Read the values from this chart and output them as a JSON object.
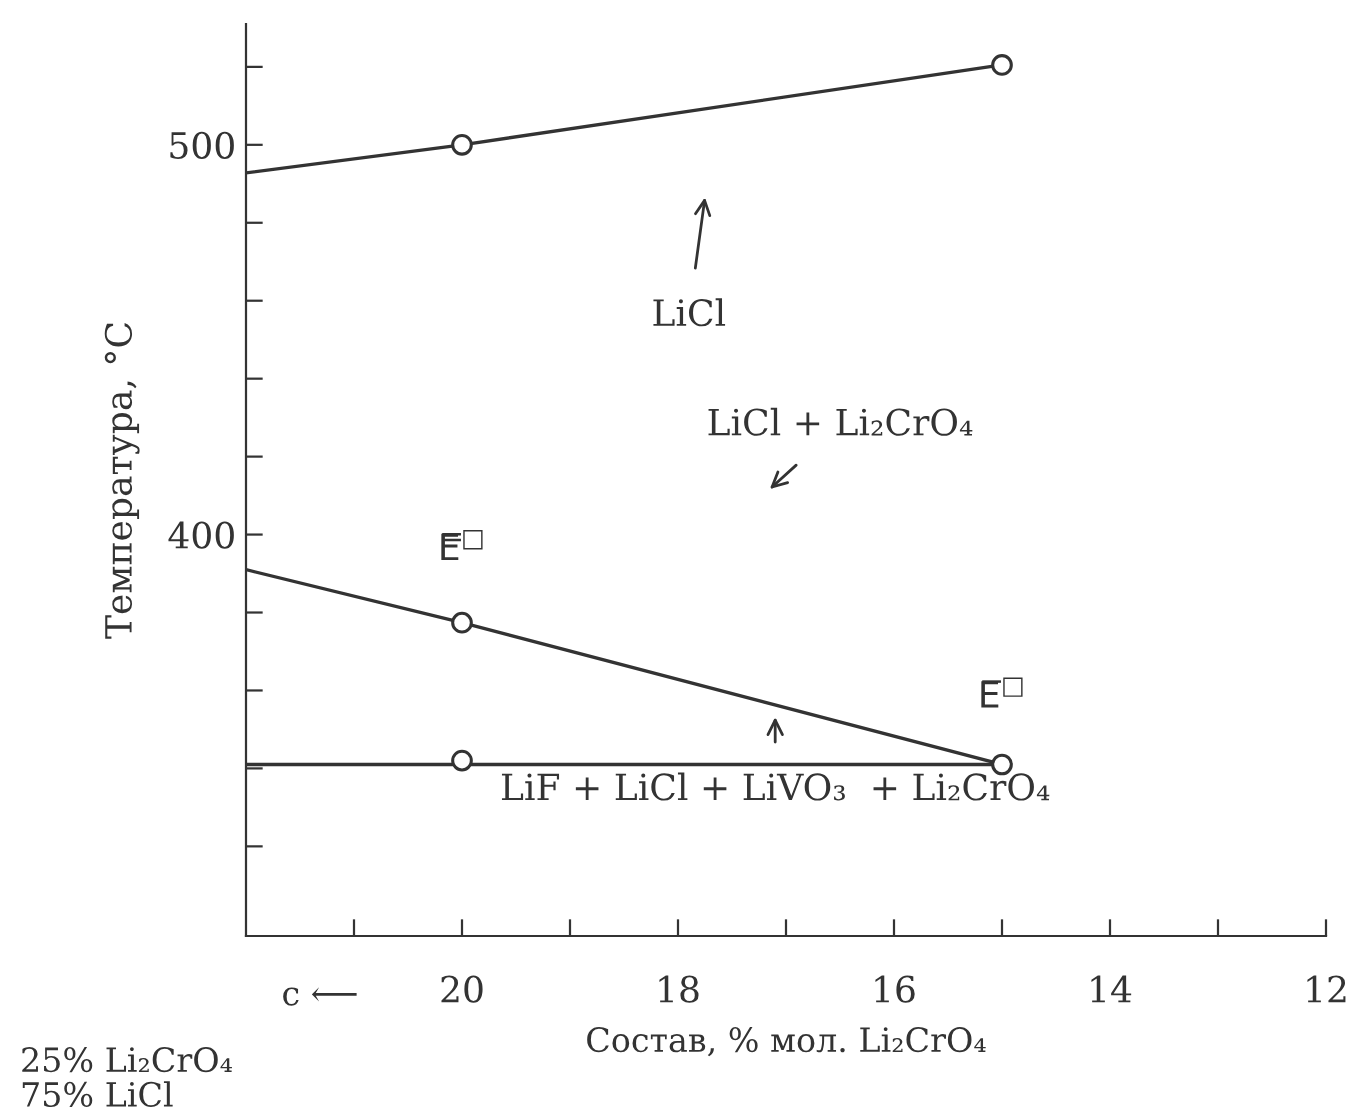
{
  "chart_data": {
    "type": "line",
    "xlabel": "Состав, % мол. Li₂CrO₄",
    "ylabel": "Температура, °C",
    "xlim": [
      22,
      12
    ],
    "ylim": [
      297,
      531
    ],
    "xticks": [
      {
        "value": 21,
        "label": null
      },
      20,
      {
        "value": 19,
        "label": null
      },
      18,
      {
        "value": 17,
        "label": null
      },
      16,
      {
        "value": 15,
        "label": null
      },
      14,
      {
        "value": 13,
        "label": null
      },
      12
    ],
    "yticks": [
      {
        "value": 320,
        "label": null
      },
      {
        "value": 340,
        "label": null
      },
      {
        "value": 360,
        "label": null
      },
      {
        "value": 380,
        "label": null
      },
      400,
      {
        "value": 420,
        "label": null
      },
      {
        "value": 440,
        "label": null
      },
      {
        "value": 460,
        "label": null
      },
      {
        "value": 480,
        "label": null
      },
      500,
      {
        "value": 520,
        "label": null
      }
    ],
    "grid": false,
    "line_style": "solid",
    "marker": "none",
    "series": [
      {
        "color": "#333333",
        "x": [
          22,
          20,
          15
        ],
        "values": [
          492.8,
          500,
          520.5
        ]
      },
      {
        "color": "#333333",
        "x": [
          22,
          20,
          15
        ],
        "values": [
          391,
          377.4,
          341
        ]
      },
      {
        "color": "#333333",
        "x": [
          22,
          15
        ],
        "values": [
          341,
          341
        ]
      },
      {
        "type": "scatter",
        "marker": "circle",
        "color": "#333333",
        "x": [
          20,
          15,
          20,
          15,
          20
        ],
        "values": [
          500,
          520.5,
          377.4,
          341,
          342
        ]
      }
    ],
    "annotations": [
      "LiCl",
      "LiCl + Li₂CrO₄",
      "LiF + LiCl + LiVO₃  + Li₂CrO₄",
      {
        "text": "E̿$^{□}$",
        "x": 20,
        "y": 377.4
      },
      {
        "text": "E̅$^{□}$",
        "x": 15,
        "y": 341
      },
      "c ⟵",
      "25% Li₂CrO₄\n75% LiCl"
    ]
  }
}
